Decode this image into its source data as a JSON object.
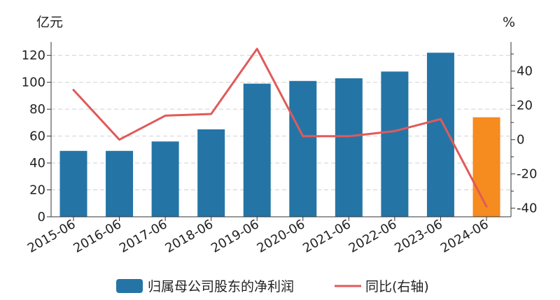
{
  "chart_data": {
    "type": "bar",
    "categories": [
      "2015-06",
      "2016-06",
      "2017-06",
      "2018-06",
      "2019-06",
      "2020-06",
      "2021-06",
      "2022-06",
      "2023-06",
      "2024-06"
    ],
    "series": [
      {
        "name": "归属母公司股东的净利润",
        "kind": "bar",
        "axis": "left",
        "values": [
          49,
          49,
          56,
          65,
          99,
          101,
          103,
          108,
          122,
          74
        ],
        "color": "#2475a6",
        "highlight_color": "#f68b1f",
        "highlight_index": 9
      },
      {
        "name": "同比(右轴)",
        "kind": "line",
        "axis": "right",
        "values": [
          29,
          0,
          14,
          15,
          53,
          2,
          2,
          5,
          12,
          -39
        ],
        "color": "#e05a5a"
      }
    ],
    "left_axis": {
      "unit": "亿元",
      "ylim": [
        0,
        130
      ],
      "ticks": [
        0,
        20,
        40,
        60,
        80,
        100,
        120
      ]
    },
    "right_axis": {
      "unit": "%",
      "ylim": [
        -45,
        57
      ],
      "ticks": [
        -40,
        -20,
        0,
        20,
        40
      ]
    },
    "grid": true,
    "legend_position": "bottom"
  }
}
